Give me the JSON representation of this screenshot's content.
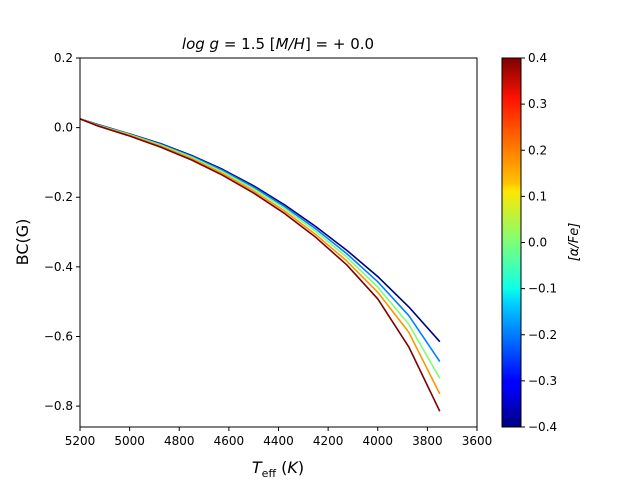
{
  "chart_data": {
    "type": "line",
    "title": "log g = 1.5    [M/H] = + 0.0",
    "xlabel": "T_eff (K)",
    "ylabel": "BC(G)",
    "xlim": [
      5200,
      3600
    ],
    "ylim": [
      -0.86,
      0.2
    ],
    "x_ticks": [
      "5200",
      "5000",
      "4800",
      "4600",
      "4400",
      "4200",
      "4000",
      "3800",
      "3600"
    ],
    "y_ticks": [
      "0.2",
      "0.0",
      "−0.2",
      "−0.4",
      "−0.6",
      "−0.8"
    ],
    "colorbar": {
      "label": "[α/Fe]",
      "range": [
        -0.4,
        0.4
      ],
      "ticks": [
        "0.4",
        "0.3",
        "0.2",
        "0.1",
        "0.0",
        "−0.1",
        "−0.2",
        "−0.3",
        "−0.4"
      ]
    },
    "x": [
      5200,
      5125,
      5000,
      4875,
      4750,
      4625,
      4500,
      4375,
      4250,
      4125,
      4000,
      3875,
      3750
    ],
    "series": [
      {
        "name": "[α/Fe] = -0.4",
        "alpha": -0.4,
        "color": "#00007f",
        "values": [
          0.025,
          0.008,
          -0.018,
          -0.046,
          -0.08,
          -0.12,
          -0.167,
          -0.222,
          -0.284,
          -0.352,
          -0.428,
          -0.515,
          -0.615
        ]
      },
      {
        "name": "[α/Fe] = -0.2",
        "alpha": -0.2,
        "color": "#0080ff",
        "values": [
          0.025,
          0.007,
          -0.019,
          -0.048,
          -0.082,
          -0.123,
          -0.171,
          -0.227,
          -0.291,
          -0.362,
          -0.443,
          -0.54,
          -0.672
        ]
      },
      {
        "name": "[α/Fe] = 0.0",
        "alpha": 0.0,
        "color": "#7cff79",
        "values": [
          0.025,
          0.006,
          -0.02,
          -0.05,
          -0.085,
          -0.127,
          -0.176,
          -0.233,
          -0.298,
          -0.372,
          -0.458,
          -0.565,
          -0.72
        ]
      },
      {
        "name": "[α/Fe] = 0.2",
        "alpha": 0.2,
        "color": "#ff9400",
        "values": [
          0.025,
          0.005,
          -0.022,
          -0.053,
          -0.089,
          -0.132,
          -0.182,
          -0.24,
          -0.307,
          -0.383,
          -0.473,
          -0.588,
          -0.765
        ]
      },
      {
        "name": "[α/Fe] = 0.4",
        "alpha": 0.4,
        "color": "#7f0000",
        "values": [
          0.025,
          0.004,
          -0.024,
          -0.056,
          -0.093,
          -0.137,
          -0.188,
          -0.247,
          -0.315,
          -0.394,
          -0.492,
          -0.63,
          -0.815
        ]
      }
    ]
  }
}
